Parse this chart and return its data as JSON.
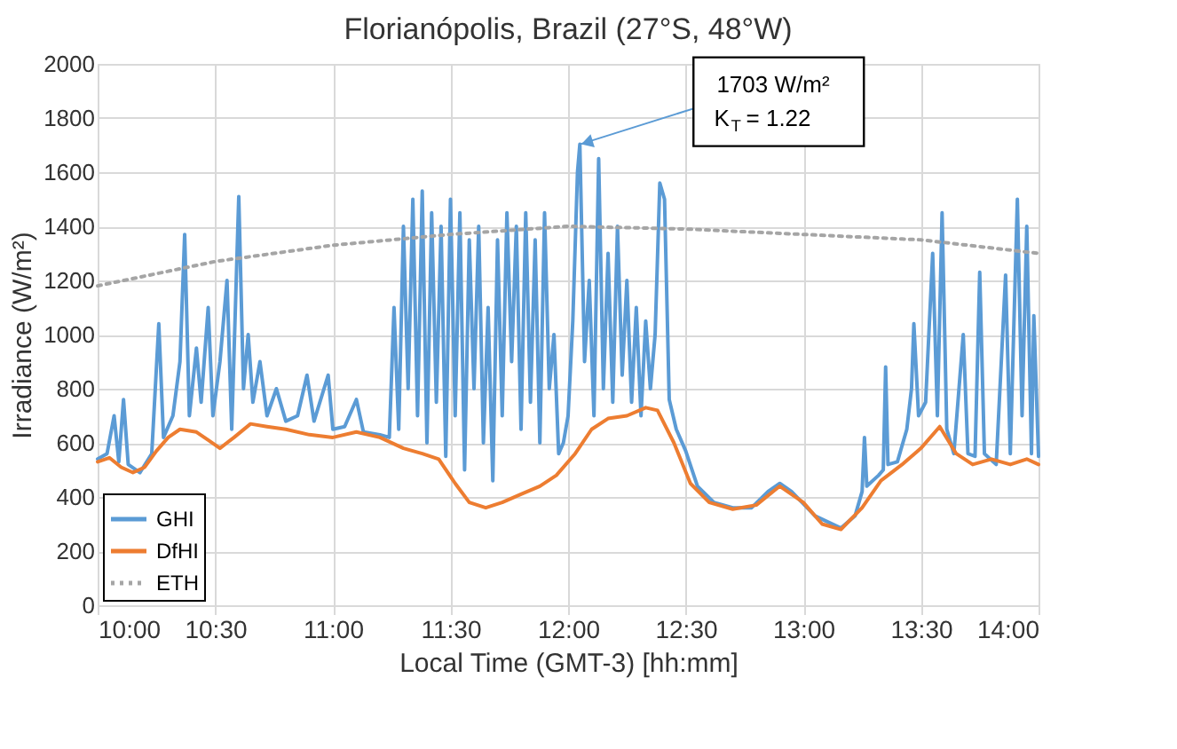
{
  "chart_data": {
    "type": "line",
    "title": "Florianópolis, Brazil (27°S, 48°W)",
    "xlabel": "Local Time (GMT-3) [hh:mm]",
    "ylabel": "Irradiance (W/m²)",
    "xlim": [
      10,
      14
    ],
    "xticks": [
      {
        "value": 10,
        "label": "10:00"
      },
      {
        "value": 10.5,
        "label": "10:30"
      },
      {
        "value": 11,
        "label": "11:00"
      },
      {
        "value": 11.5,
        "label": "11:30"
      },
      {
        "value": 12,
        "label": "12:00"
      },
      {
        "value": 12.5,
        "label": "12:30"
      },
      {
        "value": 13,
        "label": "13:00"
      },
      {
        "value": 13.5,
        "label": "13:30"
      },
      {
        "value": 14,
        "label": "14:00"
      }
    ],
    "ylim": [
      0,
      2000
    ],
    "yticks": [
      0,
      200,
      400,
      600,
      800,
      1000,
      1200,
      1400,
      1600,
      1800,
      2000
    ],
    "grid": true,
    "legend": "bottom left",
    "marker": "none",
    "annotations": [
      {
        "text": "1703 W/m²\nK$_{T}$ = 1.22",
        "x": 12.05,
        "y": 1703
      }
    ],
    "series": [
      {
        "name": "GHI",
        "color": "#5b9bd5",
        "line_style": "solid",
        "x": [
          10.0,
          10.04,
          10.07,
          10.09,
          10.11,
          10.13,
          10.18,
          10.23,
          10.26,
          10.28,
          10.32,
          10.35,
          10.37,
          10.39,
          10.42,
          10.44,
          10.47,
          10.49,
          10.52,
          10.55,
          10.57,
          10.6,
          10.62,
          10.64,
          10.66,
          10.69,
          10.72,
          10.76,
          10.8,
          10.85,
          10.89,
          10.92,
          10.98,
          11.0,
          11.05,
          11.1,
          11.13,
          11.2,
          11.24,
          11.26,
          11.28,
          11.3,
          11.32,
          11.34,
          11.36,
          11.38,
          11.4,
          11.42,
          11.44,
          11.46,
          11.48,
          11.5,
          11.52,
          11.54,
          11.56,
          11.58,
          11.6,
          11.62,
          11.64,
          11.66,
          11.68,
          11.7,
          11.72,
          11.74,
          11.76,
          11.78,
          11.8,
          11.82,
          11.84,
          11.86,
          11.88,
          11.9,
          11.92,
          11.94,
          11.96,
          11.98,
          12.0,
          12.02,
          12.04,
          12.05,
          12.07,
          12.09,
          12.11,
          12.13,
          12.15,
          12.17,
          12.19,
          12.21,
          12.23,
          12.25,
          12.27,
          12.29,
          12.31,
          12.33,
          12.35,
          12.37,
          12.39,
          12.41,
          12.43,
          12.46,
          12.5,
          12.55,
          12.62,
          12.7,
          12.78,
          12.85,
          12.9,
          12.95,
          13.05,
          13.16,
          13.22,
          13.25,
          13.26,
          13.27,
          13.32,
          13.34,
          13.35,
          13.36,
          13.4,
          13.44,
          13.46,
          13.47,
          13.49,
          13.52,
          13.55,
          13.57,
          13.59,
          13.61,
          13.64,
          13.68,
          13.7,
          13.73,
          13.75,
          13.77,
          13.82,
          13.86,
          13.88,
          13.91,
          13.93,
          13.95,
          13.97,
          13.98,
          14.0
        ],
        "values": [
          540,
          560,
          700,
          530,
          760,
          520,
          490,
          560,
          1040,
          620,
          700,
          900,
          1370,
          700,
          950,
          750,
          1100,
          700,
          900,
          1200,
          650,
          1510,
          800,
          1000,
          750,
          900,
          700,
          800,
          680,
          700,
          850,
          680,
          850,
          650,
          660,
          760,
          640,
          630,
          620,
          1100,
          650,
          1400,
          800,
          1500,
          700,
          1530,
          600,
          1450,
          750,
          1400,
          550,
          1500,
          700,
          1450,
          500,
          1350,
          800,
          1400,
          600,
          1100,
          460,
          1350,
          700,
          1450,
          900,
          1400,
          650,
          1450,
          750,
          1350,
          600,
          1450,
          800,
          1000,
          560,
          600,
          700,
          1050,
          1600,
          1703,
          900,
          1200,
          700,
          1650,
          800,
          1300,
          750,
          1400,
          850,
          1200,
          750,
          1100,
          700,
          1050,
          800,
          1000,
          1560,
          1500,
          760,
          650,
          570,
          440,
          380,
          360,
          360,
          420,
          450,
          420,
          330,
          285,
          330,
          420,
          620,
          440,
          480,
          500,
          880,
          520,
          530,
          650,
          800,
          1040,
          700,
          750,
          1300,
          700,
          1450,
          650,
          560,
          1000,
          560,
          550,
          1230,
          560,
          520,
          1220,
          560,
          1500,
          700,
          1400,
          560,
          1070,
          550
        ]
      },
      {
        "name": "DfHI",
        "color": "#ed7d31",
        "line_style": "solid",
        "x": [
          10.0,
          10.05,
          10.1,
          10.15,
          10.2,
          10.25,
          10.3,
          10.35,
          10.42,
          10.47,
          10.52,
          10.58,
          10.65,
          10.72,
          10.8,
          10.9,
          11.0,
          11.1,
          11.2,
          11.3,
          11.38,
          11.45,
          11.52,
          11.58,
          11.65,
          11.72,
          11.8,
          11.88,
          11.95,
          12.03,
          12.1,
          12.17,
          12.25,
          12.33,
          12.38,
          12.45,
          12.52,
          12.6,
          12.7,
          12.8,
          12.9,
          13.0,
          13.08,
          13.16,
          13.25,
          13.33,
          13.42,
          13.5,
          13.58,
          13.65,
          13.72,
          13.8,
          13.88,
          13.95,
          14.0
        ],
        "values": [
          530,
          545,
          510,
          490,
          510,
          570,
          620,
          650,
          640,
          610,
          580,
          620,
          670,
          660,
          650,
          630,
          620,
          640,
          620,
          580,
          560,
          540,
          450,
          380,
          360,
          380,
          410,
          440,
          480,
          560,
          650,
          690,
          700,
          730,
          720,
          600,
          450,
          380,
          355,
          370,
          440,
          380,
          300,
          280,
          360,
          460,
          520,
          580,
          660,
          560,
          520,
          540,
          520,
          540,
          520
        ]
      },
      {
        "name": "ETH",
        "color": "#a5a5a5",
        "line_style": "dotted",
        "x": [
          10.0,
          10.5,
          11.0,
          11.5,
          12.0,
          12.5,
          13.0,
          13.5,
          14.0
        ],
        "values": [
          1180,
          1270,
          1330,
          1370,
          1400,
          1390,
          1370,
          1350,
          1300
        ]
      }
    ]
  }
}
